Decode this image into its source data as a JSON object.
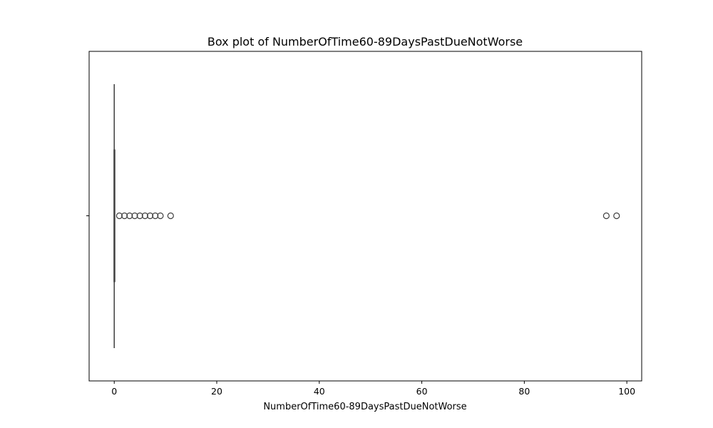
{
  "chart_data": {
    "type": "box",
    "orientation": "horizontal",
    "title": "Box plot of NumberOfTime60-89DaysPastDueNotWorse",
    "xlabel": "NumberOfTime60-89DaysPastDueNotWorse",
    "ylabel": "",
    "xlim": [
      -4.9,
      102.9
    ],
    "xticks": [
      0,
      20,
      40,
      60,
      80,
      100
    ],
    "xtick_labels": [
      "0",
      "20",
      "40",
      "60",
      "80",
      "100"
    ],
    "grid": false,
    "box": {
      "whisker_low": 0,
      "q1": 0,
      "median": 0,
      "q3": 0,
      "whisker_high": 0
    },
    "outliers": [
      1,
      2,
      3,
      4,
      5,
      6,
      7,
      8,
      9,
      11,
      96,
      98
    ],
    "colors": {
      "box_line": "#3f3f3f",
      "outlier_edge": "#3f3f3f",
      "axes": "#000000"
    }
  }
}
